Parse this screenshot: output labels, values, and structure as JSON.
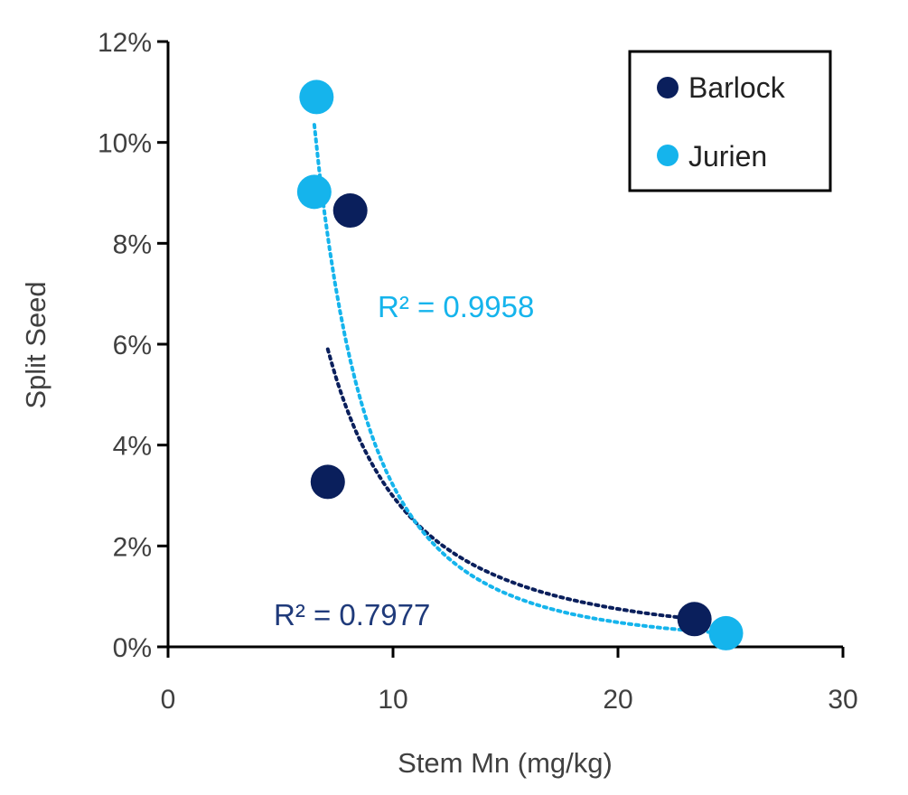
{
  "chart_data": {
    "type": "scatter",
    "title": "",
    "xlabel": "Stem Mn (mg/kg)",
    "ylabel": "Split Seed",
    "xlim": [
      0,
      30
    ],
    "ylim": [
      0,
      0.12
    ],
    "xticks": [
      0,
      10,
      20,
      30
    ],
    "yticks": [
      0,
      0.02,
      0.04,
      0.06,
      0.08,
      0.1,
      0.12
    ],
    "xtick_labels": [
      "0",
      "10",
      "20",
      "30"
    ],
    "ytick_labels": [
      "0%",
      "2%",
      "4%",
      "6%",
      "8%",
      "10%",
      "12%"
    ],
    "grid": false,
    "legend_position": "top-right",
    "series": [
      {
        "name": "Barlock",
        "color": "#0a1f5c",
        "points": [
          [
            8.1,
            0.0865
          ],
          [
            7.1,
            0.0327
          ],
          [
            23.4,
            0.0055
          ]
        ],
        "trendline": {
          "type": "power",
          "r2_label": "R² = 0.7977",
          "x_range": [
            7.1,
            23.4
          ],
          "y_range": [
            0.059,
            0.0055
          ]
        }
      },
      {
        "name": "Jurien",
        "color": "#15b4ec",
        "points": [
          [
            6.6,
            0.109
          ],
          [
            6.5,
            0.0902
          ],
          [
            24.8,
            0.0027
          ]
        ],
        "trendline": {
          "type": "power",
          "r2_label": "R² = 0.9958",
          "x_range": [
            6.5,
            24.8
          ],
          "y_range": [
            0.1035,
            0.0027
          ]
        }
      }
    ]
  }
}
